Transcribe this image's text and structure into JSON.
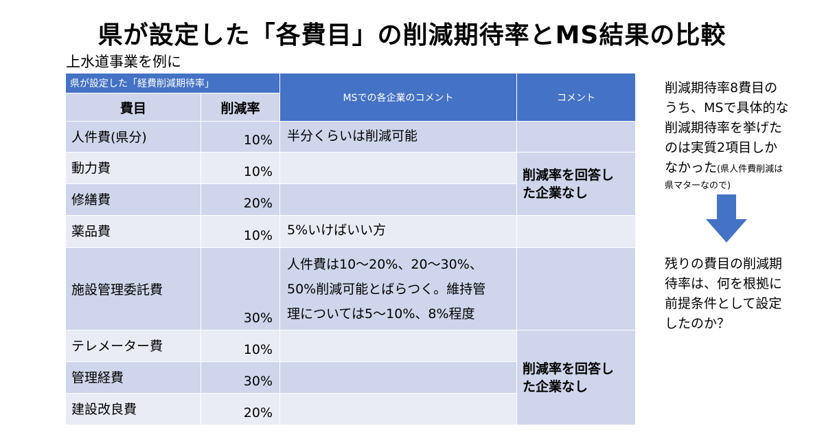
{
  "title": "県が設定した「各費目」の削減期待率とMS結果の比較",
  "subtitle": "上水道事業を例に",
  "table": {
    "group_header": "県が設定した「経費削減期待率」",
    "col_ms": "MSでの各企業のコメント",
    "col_comment": "コメント",
    "col_item": "費目",
    "col_rate": "削減率",
    "rows": [
      {
        "item": "人件費(県分)",
        "rate": "10%",
        "ms": "半分くらいは削減可能"
      },
      {
        "item": "動力費",
        "rate": "10%",
        "ms": ""
      },
      {
        "item": "修繕費",
        "rate": "20%",
        "ms": ""
      },
      {
        "item": "薬品費",
        "rate": "10%",
        "ms": "5%いけばいい方"
      },
      {
        "item": "施設管理委託費",
        "rate": "30%",
        "ms_lines": [
          "人件費は10～20%、20～30%、",
          "50%削減可能とばらつく。維持管",
          "理については5～10%、8%程度"
        ]
      },
      {
        "item": "テレメーター費",
        "rate": "10%",
        "ms": ""
      },
      {
        "item": "管理経費",
        "rate": "30%",
        "ms": ""
      },
      {
        "item": "建設改良費",
        "rate": "20%",
        "ms": ""
      }
    ],
    "comment_group1": [
      "削減率を回答し",
      "た企業なし"
    ],
    "comment_group2": [
      "削減率を回答し",
      "た企業なし"
    ]
  },
  "side_note1": {
    "lines": [
      "削減期待率8費目の",
      "うち、MSで具体的な",
      "削減期待率を挙げた",
      "のは実質2項目しか"
    ],
    "last_line": "なかった",
    "small_1": "(県人件費削減は",
    "small_2": "県マターなので)"
  },
  "arrow_icon": "down-arrow-icon",
  "side_note2": {
    "lines": [
      "残りの費目の削減期",
      "待率は、何を根拠に",
      "前提条件として設定",
      "したのか？"
    ]
  },
  "colors": {
    "header_blue": "#4472c4",
    "band_dark": "#cfd5ea",
    "band_light": "#e9ebf5",
    "arrow": "#4472c4"
  }
}
